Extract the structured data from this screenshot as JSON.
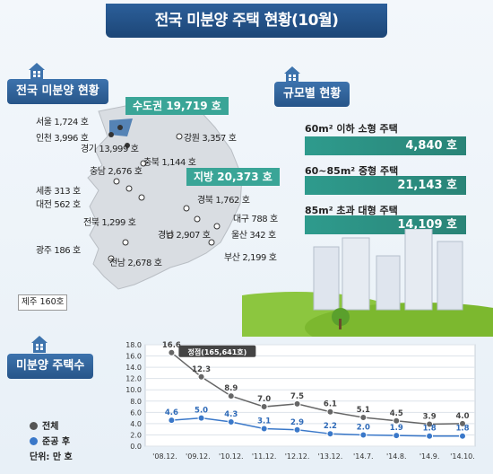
{
  "title": "전국 미분양 주택 현황(10월)",
  "section_map": "전국 미분양 현황",
  "section_size": "규모별 현황",
  "section_chart": "미분양 주택수",
  "map": {
    "metro_badge": "수도권 19,719 호",
    "local_badge": "지방 20,373 호",
    "seoul": "서울 1,724 호",
    "incheon": "인천 3,996 호",
    "gyeonggi": "경기 13,999 호",
    "gangwon": "강원 3,357 호",
    "chungbuk": "충북 1,144 호",
    "chungnam": "충남 2,676 호",
    "sejong": "세종 313 호",
    "daejeon": "대전 562 호",
    "gyeongbuk": "경북 1,762 호",
    "daegu": "대구 788 호",
    "jeonbuk": "전북 1,299 호",
    "gyeongnam": "경남 2,907 호",
    "ulsan": "울산 342 호",
    "gwangju": "광주 186 호",
    "jeonnam": "전남 2,678 호",
    "busan": "부산 2,199 호",
    "jeju": "제주 160호"
  },
  "sizes": [
    {
      "label": "60m² 이하 소형 주택",
      "value": "4,840 호"
    },
    {
      "label": "60~85m² 중형 주택",
      "value": "21,143 호"
    },
    {
      "label": "85m² 초과 대형 주택",
      "value": "14,109 호"
    }
  ],
  "legend": {
    "total": "전체",
    "completed": "준공 후",
    "unit": "단위: 만 호"
  },
  "colors": {
    "total": "#666666",
    "completed": "#3a78c9",
    "accent": "#3aa597"
  },
  "chart_data": {
    "type": "line",
    "categories": [
      "'08.12.",
      "'09.12.",
      "'10.12.",
      "'11.12.",
      "'12.12.",
      "'13.12.",
      "'14.7.",
      "'14.8.",
      "'14.9.",
      "'14.10."
    ],
    "x_points": [
      0,
      1,
      2,
      3,
      4,
      5,
      6,
      7,
      8,
      9
    ],
    "yticks": [
      "18.0",
      "16.0",
      "14.0",
      "12.0",
      "10.0",
      "8.0",
      "6.0",
      "4.0",
      "2.0",
      "0.0"
    ],
    "ylim": [
      0,
      18
    ],
    "peak_x": 0.2,
    "peak_value": 16.6,
    "peak_label": "정점(165,641호)",
    "series": [
      {
        "name": "전체",
        "x": [
          0.2,
          1.1,
          2.0,
          3.0,
          4.0,
          5.0,
          6.0,
          7.0,
          8.0,
          9.0
        ],
        "values": [
          16.6,
          12.3,
          8.9,
          7.0,
          7.5,
          6.1,
          5.1,
          4.5,
          3.9,
          4.0
        ],
        "labels": [
          "16.6",
          "12.3",
          "8.9",
          "7.0",
          "7.5",
          "6.1",
          "5.1",
          "4.5",
          "3.9",
          "4.0"
        ]
      },
      {
        "name": "준공 후",
        "x": [
          0.2,
          1.1,
          2.0,
          3.0,
          4.0,
          5.0,
          6.0,
          7.0,
          8.0,
          9.0
        ],
        "values": [
          4.6,
          5.0,
          4.3,
          3.1,
          2.9,
          2.2,
          2.0,
          1.9,
          1.8,
          1.8
        ],
        "labels": [
          "4.6",
          "5.0",
          "4.3",
          "3.1",
          "2.9",
          "2.2",
          "2.0",
          "1.9",
          "1.8",
          "1.8"
        ]
      }
    ],
    "grid": true
  }
}
